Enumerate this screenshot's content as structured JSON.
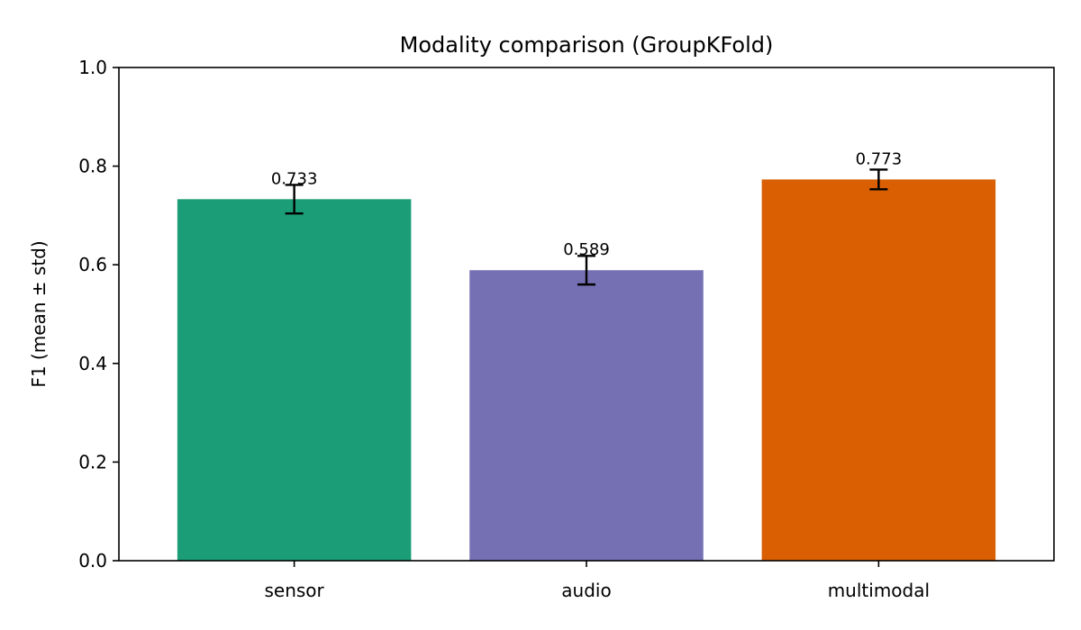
{
  "chart_data": {
    "type": "bar",
    "title": "Modality comparison (GroupKFold)",
    "xlabel": "",
    "ylabel": "F1 (mean ± std)",
    "categories": [
      "sensor",
      "audio",
      "multimodal"
    ],
    "values": [
      0.733,
      0.589,
      0.773
    ],
    "errors": [
      0.029,
      0.029,
      0.02
    ],
    "value_labels": [
      "0.733",
      "0.589",
      "0.773"
    ],
    "colors": [
      "#1b9e77",
      "#7570b3",
      "#d95f02"
    ],
    "ylim": [
      0,
      1.0
    ],
    "yticks": [
      0.0,
      0.2,
      0.4,
      0.6,
      0.8,
      1.0
    ],
    "ytick_labels": [
      "0.0",
      "0.2",
      "0.4",
      "0.6",
      "0.8",
      "1.0"
    ],
    "grid": false,
    "legend": "none"
  }
}
